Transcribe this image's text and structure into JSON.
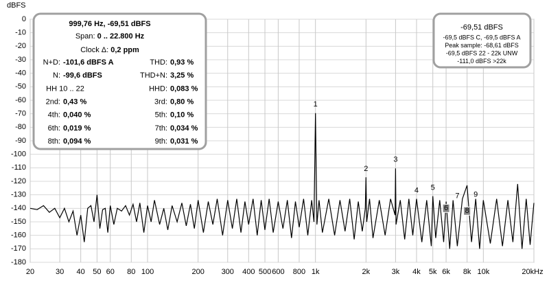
{
  "chart_data": {
    "type": "line",
    "y_label": "dBFS",
    "xscale": "log",
    "grid": true,
    "color": "#000000",
    "xlim": [
      20,
      20000
    ],
    "ylim": [
      -180,
      0
    ],
    "xticks": [
      20,
      30,
      40,
      50,
      60,
      80,
      100,
      200,
      300,
      400,
      500,
      600,
      800,
      {
        "value": 1000,
        "label": "1k"
      },
      {
        "value": 2000,
        "label": "2k"
      },
      {
        "value": 3000,
        "label": "3k"
      },
      {
        "value": 4000,
        "label": "4k"
      },
      {
        "value": 5000,
        "label": "5k"
      },
      {
        "value": 6000,
        "label": "6k"
      },
      {
        "value": 8000,
        "label": "8k"
      },
      {
        "value": 10000,
        "label": "10k"
      },
      {
        "value": 20000,
        "label": "20kHz"
      }
    ],
    "yticks": [
      0,
      -10,
      -20,
      -30,
      -40,
      -50,
      -60,
      -70,
      -80,
      -90,
      -100,
      -110,
      -120,
      -130,
      -140,
      -150,
      -160,
      -170,
      -180
    ],
    "x": [
      20,
      22,
      24,
      26,
      28,
      30,
      32,
      34,
      36,
      38,
      40,
      42,
      44,
      46,
      48,
      50,
      52,
      54,
      56,
      58,
      60,
      63,
      66,
      70,
      74,
      78,
      82,
      86,
      90,
      95,
      100,
      105,
      110,
      118,
      125,
      132,
      140,
      150,
      160,
      170,
      180,
      190,
      200,
      215,
      230,
      245,
      260,
      280,
      300,
      320,
      340,
      360,
      380,
      400,
      425,
      450,
      475,
      500,
      530,
      560,
      600,
      640,
      680,
      720,
      760,
      800,
      850,
      900,
      950,
      980,
      1000,
      1020,
      1050,
      1100,
      1200,
      1300,
      1400,
      1500,
      1600,
      1700,
      1800,
      1900,
      1980,
      2000,
      2020,
      2100,
      2200,
      2400,
      2600,
      2800,
      2980,
      3000,
      3020,
      3200,
      3400,
      3600,
      3800,
      4000,
      4300,
      4600,
      4900,
      5000,
      5200,
      5500,
      5800,
      6000,
      6300,
      6600,
      7000,
      7500,
      8000,
      8500,
      9000,
      9500,
      10000,
      11000,
      12000,
      13000,
      14000,
      15000,
      16000,
      17000,
      18000,
      19000,
      20000
    ],
    "values": [
      -140,
      -141,
      -138,
      -143,
      -140,
      -147,
      -140,
      -150,
      -142,
      -160,
      -145,
      -165,
      -140,
      -138,
      -150,
      -130,
      -155,
      -141,
      -140,
      -158,
      -138,
      -152,
      -140,
      -142,
      -138,
      -145,
      -137,
      -150,
      -136,
      -158,
      -138,
      -150,
      -134,
      -152,
      -140,
      -156,
      -138,
      -150,
      -136,
      -153,
      -137,
      -155,
      -134,
      -158,
      -135,
      -152,
      -133,
      -160,
      -134,
      -155,
      -133,
      -158,
      -135,
      -152,
      -133,
      -160,
      -134,
      -156,
      -133,
      -158,
      -135,
      -155,
      -134,
      -162,
      -135,
      -154,
      -133,
      -160,
      -134,
      -150,
      -69.5,
      -152,
      -134,
      -158,
      -133,
      -160,
      -134,
      -157,
      -133,
      -163,
      -135,
      -157,
      -140,
      -117,
      -150,
      -133,
      -162,
      -134,
      -160,
      -133,
      -145,
      -110.5,
      -152,
      -134,
      -163,
      -133,
      -160,
      -133,
      -165,
      -134,
      -168,
      -131,
      -162,
      -134,
      -165,
      -135,
      -170,
      -134,
      -168,
      -133,
      -123,
      -165,
      -133,
      -170,
      -134,
      -166,
      -133,
      -168,
      -134,
      -165,
      -122,
      -170,
      -133,
      -167,
      -136
    ],
    "annotations": [
      {
        "label": "1",
        "x": 1000,
        "y": -63,
        "boxed": false
      },
      {
        "label": "2",
        "x": 2000,
        "y": -111,
        "boxed": false
      },
      {
        "label": "3",
        "x": 3000,
        "y": -104,
        "boxed": false
      },
      {
        "label": "4",
        "x": 4000,
        "y": -127,
        "boxed": false
      },
      {
        "label": "5",
        "x": 5000,
        "y": -125,
        "boxed": false
      },
      {
        "label": "6",
        "x": 6000,
        "y": -140,
        "boxed": true
      },
      {
        "label": "7",
        "x": 7000,
        "y": -131,
        "boxed": false
      },
      {
        "label": "8",
        "x": 8000,
        "y": -142,
        "boxed": true
      },
      {
        "label": "9",
        "x": 9000,
        "y": -130,
        "boxed": false
      }
    ],
    "info_panel": {
      "title": "999,76 Hz, -69,51 dBFS",
      "span": {
        "label": "Span:",
        "value": "0 .. 22.800 Hz"
      },
      "clock": {
        "label": "Clock Δ:",
        "value": "0,2 ppm"
      },
      "rows": [
        [
          {
            "label": "N+D:",
            "value": "-101,6 dBFS A"
          },
          {
            "label": "THD:",
            "value": "0,93 %"
          }
        ],
        [
          {
            "label": "N:",
            "value": "-99,6 dBFS"
          },
          {
            "label": "THD+N:",
            "value": "3,25 %"
          }
        ],
        [
          {
            "label": "HH 10 .. 22"
          },
          {
            "label": "HHD:",
            "value": "0,083 %"
          }
        ],
        [
          {
            "label": "2nd:",
            "value": "0,43 %"
          },
          {
            "label": "3rd:",
            "value": "0,80 %"
          }
        ],
        [
          {
            "label": "4th:",
            "value": "0,040 %"
          },
          {
            "label": "5th:",
            "value": "0,10 %"
          }
        ],
        [
          {
            "label": "6th:",
            "value": "0,019 %"
          },
          {
            "label": "7th:",
            "value": "0,034 %"
          }
        ],
        [
          {
            "label": "8th:",
            "value": "0,094 %"
          },
          {
            "label": "9th:",
            "value": "0,031 %"
          }
        ]
      ]
    },
    "level_panel": {
      "title": "-69,51 dBFS",
      "lines": [
        "-69,5 dBFS C, -69,5 dBFS A",
        "Peak sample: -68,61 dBFS",
        "-69,5 dBFS 22 - 22k UNW",
        "-111,0 dBFS >22k"
      ]
    }
  }
}
